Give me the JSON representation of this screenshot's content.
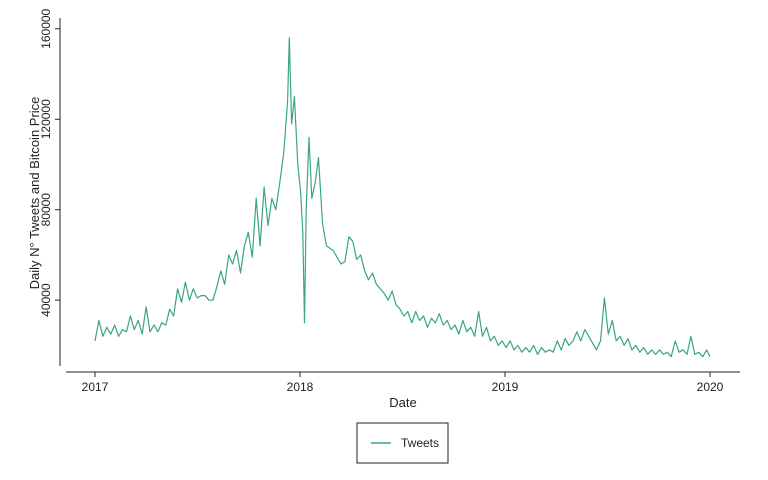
{
  "chart_data": {
    "type": "line",
    "xlabel": "Date",
    "ylabel": "Daily N° Tweets and Bitcoin Price",
    "xlim": [
      "2017-01-01",
      "2020-01-01"
    ],
    "ylim": [
      10000,
      163000
    ],
    "x_ticks": [
      "2017",
      "2018",
      "2019",
      "2020"
    ],
    "y_ticks": [
      40000,
      80000,
      120000,
      160000
    ],
    "grid": false,
    "legend_position": "bottom-center",
    "colors": {
      "tweets": "#3aa57f",
      "axis": "#222222"
    },
    "series": [
      {
        "name": "Tweets",
        "points": [
          [
            "2017-01-01",
            22000
          ],
          [
            "2017-01-08",
            31000
          ],
          [
            "2017-01-15",
            24000
          ],
          [
            "2017-01-22",
            28000
          ],
          [
            "2017-01-29",
            25000
          ],
          [
            "2017-02-05",
            29000
          ],
          [
            "2017-02-12",
            24000
          ],
          [
            "2017-02-19",
            27000
          ],
          [
            "2017-02-26",
            26000
          ],
          [
            "2017-03-05",
            33000
          ],
          [
            "2017-03-12",
            27000
          ],
          [
            "2017-03-19",
            31000
          ],
          [
            "2017-03-26",
            25000
          ],
          [
            "2017-04-02",
            37000
          ],
          [
            "2017-04-09",
            26000
          ],
          [
            "2017-04-16",
            29000
          ],
          [
            "2017-04-23",
            26000
          ],
          [
            "2017-04-30",
            30000
          ],
          [
            "2017-05-07",
            29000
          ],
          [
            "2017-05-14",
            36000
          ],
          [
            "2017-05-21",
            33000
          ],
          [
            "2017-05-28",
            45000
          ],
          [
            "2017-06-04",
            39000
          ],
          [
            "2017-06-11",
            48000
          ],
          [
            "2017-06-18",
            40000
          ],
          [
            "2017-06-25",
            45000
          ],
          [
            "2017-07-02",
            41000
          ],
          [
            "2017-07-09",
            42000
          ],
          [
            "2017-07-16",
            42000
          ],
          [
            "2017-07-23",
            40000
          ],
          [
            "2017-07-30",
            40000
          ],
          [
            "2017-08-06",
            46000
          ],
          [
            "2017-08-13",
            53000
          ],
          [
            "2017-08-20",
            47000
          ],
          [
            "2017-08-27",
            60000
          ],
          [
            "2017-09-03",
            56000
          ],
          [
            "2017-09-10",
            62000
          ],
          [
            "2017-09-17",
            52000
          ],
          [
            "2017-09-24",
            64000
          ],
          [
            "2017-10-01",
            70000
          ],
          [
            "2017-10-08",
            59000
          ],
          [
            "2017-10-15",
            85000
          ],
          [
            "2017-10-22",
            64000
          ],
          [
            "2017-10-29",
            90000
          ],
          [
            "2017-11-05",
            73000
          ],
          [
            "2017-11-12",
            85000
          ],
          [
            "2017-11-19",
            80000
          ],
          [
            "2017-11-26",
            92000
          ],
          [
            "2017-12-03",
            105000
          ],
          [
            "2017-12-10",
            128000
          ],
          [
            "2017-12-13",
            156000
          ],
          [
            "2017-12-17",
            118000
          ],
          [
            "2017-12-22",
            130000
          ],
          [
            "2017-12-28",
            100000
          ],
          [
            "2018-01-02",
            88000
          ],
          [
            "2018-01-06",
            70000
          ],
          [
            "2018-01-09",
            30000
          ],
          [
            "2018-01-12",
            80000
          ],
          [
            "2018-01-17",
            112000
          ],
          [
            "2018-01-22",
            85000
          ],
          [
            "2018-01-28",
            92000
          ],
          [
            "2018-02-03",
            103000
          ],
          [
            "2018-02-10",
            74000
          ],
          [
            "2018-02-17",
            64000
          ],
          [
            "2018-03-01",
            62000
          ],
          [
            "2018-03-15",
            56000
          ],
          [
            "2018-03-22",
            57000
          ],
          [
            "2018-03-29",
            68000
          ],
          [
            "2018-04-05",
            66000
          ],
          [
            "2018-04-12",
            58000
          ],
          [
            "2018-04-19",
            60000
          ],
          [
            "2018-04-26",
            53000
          ],
          [
            "2018-05-03",
            49000
          ],
          [
            "2018-05-10",
            52000
          ],
          [
            "2018-05-17",
            47000
          ],
          [
            "2018-05-24",
            45000
          ],
          [
            "2018-05-31",
            43000
          ],
          [
            "2018-06-07",
            40000
          ],
          [
            "2018-06-14",
            44000
          ],
          [
            "2018-06-21",
            38000
          ],
          [
            "2018-06-28",
            36000
          ],
          [
            "2018-07-05",
            33000
          ],
          [
            "2018-07-12",
            35000
          ],
          [
            "2018-07-19",
            30000
          ],
          [
            "2018-07-26",
            35000
          ],
          [
            "2018-08-02",
            31000
          ],
          [
            "2018-08-09",
            33000
          ],
          [
            "2018-08-16",
            28000
          ],
          [
            "2018-08-23",
            32000
          ],
          [
            "2018-08-30",
            30000
          ],
          [
            "2018-09-06",
            34000
          ],
          [
            "2018-09-13",
            29000
          ],
          [
            "2018-09-20",
            31000
          ],
          [
            "2018-09-27",
            27000
          ],
          [
            "2018-10-04",
            29000
          ],
          [
            "2018-10-11",
            25000
          ],
          [
            "2018-10-18",
            31000
          ],
          [
            "2018-10-25",
            26000
          ],
          [
            "2018-11-01",
            28000
          ],
          [
            "2018-11-08",
            24000
          ],
          [
            "2018-11-15",
            35000
          ],
          [
            "2018-11-22",
            24000
          ],
          [
            "2018-11-29",
            28000
          ],
          [
            "2018-12-06",
            22000
          ],
          [
            "2018-12-13",
            24000
          ],
          [
            "2018-12-20",
            20000
          ],
          [
            "2018-12-27",
            22000
          ],
          [
            "2019-01-03",
            19000
          ],
          [
            "2019-01-10",
            22000
          ],
          [
            "2019-01-17",
            18000
          ],
          [
            "2019-01-24",
            20000
          ],
          [
            "2019-01-31",
            17000
          ],
          [
            "2019-02-07",
            19000
          ],
          [
            "2019-02-14",
            17000
          ],
          [
            "2019-02-21",
            20000
          ],
          [
            "2019-02-28",
            16000
          ],
          [
            "2019-03-07",
            19000
          ],
          [
            "2019-03-14",
            17000
          ],
          [
            "2019-03-21",
            18000
          ],
          [
            "2019-03-28",
            17000
          ],
          [
            "2019-04-04",
            22000
          ],
          [
            "2019-04-11",
            18000
          ],
          [
            "2019-04-18",
            23000
          ],
          [
            "2019-04-25",
            20000
          ],
          [
            "2019-05-02",
            22000
          ],
          [
            "2019-05-09",
            26000
          ],
          [
            "2019-05-16",
            22000
          ],
          [
            "2019-05-23",
            27000
          ],
          [
            "2019-05-30",
            24000
          ],
          [
            "2019-06-06",
            21000
          ],
          [
            "2019-06-13",
            18000
          ],
          [
            "2019-06-20",
            22000
          ],
          [
            "2019-06-27",
            41000
          ],
          [
            "2019-07-04",
            25000
          ],
          [
            "2019-07-11",
            31000
          ],
          [
            "2019-07-18",
            22000
          ],
          [
            "2019-07-25",
            24000
          ],
          [
            "2019-08-01",
            20000
          ],
          [
            "2019-08-08",
            23000
          ],
          [
            "2019-08-15",
            18000
          ],
          [
            "2019-08-22",
            20000
          ],
          [
            "2019-08-29",
            17000
          ],
          [
            "2019-09-05",
            19000
          ],
          [
            "2019-09-12",
            16000
          ],
          [
            "2019-09-19",
            18000
          ],
          [
            "2019-09-26",
            16000
          ],
          [
            "2019-10-03",
            18000
          ],
          [
            "2019-10-10",
            16000
          ],
          [
            "2019-10-17",
            17000
          ],
          [
            "2019-10-24",
            15000
          ],
          [
            "2019-10-31",
            22000
          ],
          [
            "2019-11-07",
            17000
          ],
          [
            "2019-11-14",
            18000
          ],
          [
            "2019-11-21",
            16000
          ],
          [
            "2019-11-28",
            24000
          ],
          [
            "2019-12-05",
            16000
          ],
          [
            "2019-12-12",
            17000
          ],
          [
            "2019-12-19",
            15000
          ],
          [
            "2019-12-26",
            18000
          ],
          [
            "2020-01-01",
            15000
          ]
        ]
      }
    ]
  }
}
